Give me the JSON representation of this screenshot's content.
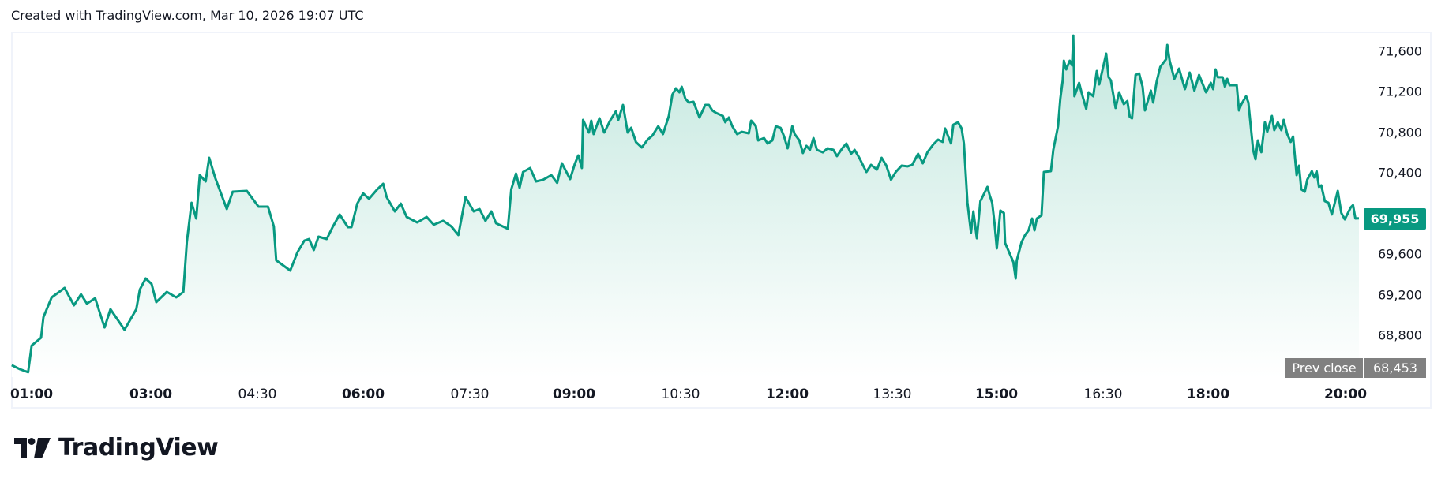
{
  "header": {
    "text": "Created with TradingView.com, Mar 10, 2026 19:07 UTC"
  },
  "logo": {
    "text": "TradingView",
    "icon": "tradingview-logo-icon"
  },
  "colors": {
    "line": "#089981",
    "fill_top": "#c4e8df",
    "fill_bottom": "#ffffff",
    "prev_close": "#808080",
    "frame": "#f0f3fa",
    "text": "#131722"
  },
  "price_badge": {
    "value": "69,955"
  },
  "prev_close": {
    "label": "Prev close",
    "value": "68,453"
  },
  "chart_data": {
    "type": "area",
    "title": "",
    "xlabel": "",
    "ylabel": "",
    "x_unit": "minutes after 01:00 UTC",
    "x_ticks": [
      {
        "label": "01:00",
        "bold": true,
        "pos": 40
      },
      {
        "label": "03:00",
        "bold": true,
        "pos": 191
      },
      {
        "label": "04:30",
        "bold": false,
        "pos": 326
      },
      {
        "label": "06:00",
        "bold": true,
        "pos": 460
      },
      {
        "label": "07:30",
        "bold": false,
        "pos": 595
      },
      {
        "label": "09:00",
        "bold": true,
        "pos": 727
      },
      {
        "label": "10:30",
        "bold": false,
        "pos": 862
      },
      {
        "label": "12:00",
        "bold": true,
        "pos": 997
      },
      {
        "label": "13:30",
        "bold": false,
        "pos": 1130
      },
      {
        "label": "15:00",
        "bold": true,
        "pos": 1262
      },
      {
        "label": "16:30",
        "bold": false,
        "pos": 1397
      },
      {
        "label": "18:00",
        "bold": true,
        "pos": 1530
      },
      {
        "label": "20:00",
        "bold": true,
        "pos": 1704
      }
    ],
    "y_ticks": [
      {
        "label": "71,600",
        "value": 71600
      },
      {
        "label": "71,200",
        "value": 71200
      },
      {
        "label": "70,800",
        "value": 70800
      },
      {
        "label": "70,400",
        "value": 70400
      },
      {
        "label": "69,600",
        "value": 69600
      },
      {
        "label": "69,200",
        "value": 69200
      },
      {
        "label": "68,800",
        "value": 68800
      }
    ],
    "ylim": [
      68300,
      71800
    ],
    "current_price": 69955,
    "prev_close": 68453,
    "grid": false,
    "legend": "none",
    "x": [
      1,
      8,
      15,
      18,
      26,
      28,
      35,
      46,
      54,
      60,
      65,
      72,
      80,
      85,
      97,
      107,
      110,
      115,
      120,
      124,
      133,
      141,
      147,
      150,
      154,
      158,
      161,
      166,
      169,
      174,
      184,
      189,
      201,
      211,
      219,
      224,
      226,
      238,
      244,
      250,
      254,
      258,
      262,
      269,
      274,
      280,
      287,
      290,
      295,
      300,
      305,
      312,
      317,
      320,
      327,
      332,
      337,
      346,
      354,
      360,
      368,
      375,
      381,
      387,
      394,
      399,
      404,
      409,
      413,
      423,
      426,
      430,
      433,
      436,
      442,
      447,
      453,
      460,
      465,
      469,
      476,
      480,
      483,
      486,
      487,
      492,
      494,
      496,
      501,
      505,
      510,
      515,
      517,
      521,
      525,
      528,
      532,
      537,
      542,
      546,
      551,
      555,
      560,
      563,
      566,
      569,
      571,
      574,
      577,
      581,
      586,
      591,
      594,
      597,
      600,
      606,
      608,
      611,
      614,
      618,
      622,
      628,
      630,
      634,
      636,
      641,
      644,
      648,
      651,
      655,
      658,
      661,
      665,
      667,
      671,
      674,
      677,
      680,
      683,
      686,
      691,
      695,
      700,
      703,
      708,
      711,
      715,
      718,
      722,
      728,
      732,
      737,
      741,
      745,
      749,
      753,
      758,
      763,
      767,
      772,
      776,
      780,
      785,
      789,
      793,
      795,
      800,
      802,
      806,
      809,
      811,
      814,
      817,
      819,
      822,
      825,
      831,
      833,
      835,
      837,
      839,
      842,
      845,
      846,
      853,
      855,
      856,
      860,
      863,
      866,
      869,
      871,
      873,
      877,
      879,
      885,
      887,
      891,
      893,
      895,
      896,
      898,
      901,
      903,
      904,
      905,
      909,
      911,
      915,
      917,
      921,
      924,
      926,
      932,
      934,
      936,
      940,
      943,
      947,
      950,
      952,
      954,
      957,
      960,
      963,
      965,
      970,
      972,
      975,
      978,
      983,
      984,
      986,
      990,
      994,
      999,
      1003,
      1007,
      1011,
      1017,
      1021,
      1023,
      1025,
      1027,
      1031,
      1033,
      1035,
      1037,
      1043,
      1045,
      1047,
      1051,
      1053,
      1057,
      1059,
      1061,
      1064,
      1067,
      1069,
      1073,
      1075,
      1078,
      1081,
      1083,
      1086,
      1089,
      1091,
      1094,
      1096,
      1098,
      1101,
      1103,
      1107,
      1109,
      1111,
      1113,
      1115,
      1118,
      1121,
      1124,
      1129,
      1132,
      1135,
      1140,
      1142,
      1144,
      1147
    ],
    "values": [
      68508,
      68469,
      68438,
      68702,
      68779,
      68981,
      69176,
      69269,
      69098,
      69207,
      69114,
      69168,
      68880,
      69059,
      68857,
      69059,
      69253,
      69362,
      69308,
      69129,
      69230,
      69176,
      69230,
      69720,
      70108,
      69953,
      70380,
      70318,
      70551,
      70357,
      70046,
      70217,
      70225,
      70069,
      70069,
      69875,
      69541,
      69440,
      69619,
      69735,
      69751,
      69642,
      69774,
      69751,
      69867,
      69992,
      69867,
      69867,
      70100,
      70201,
      70147,
      70240,
      70295,
      70163,
      70023,
      70100,
      69968,
      69914,
      69968,
      69891,
      69930,
      69875,
      69790,
      70163,
      70023,
      70046,
      69930,
      70023,
      69906,
      69852,
      70240,
      70396,
      70256,
      70411,
      70450,
      70318,
      70334,
      70380,
      70303,
      70497,
      70341,
      70489,
      70574,
      70450,
      70924,
      70800,
      70916,
      70784,
      70940,
      70800,
      70916,
      71009,
      70924,
      71072,
      70800,
      70846,
      70706,
      70652,
      70730,
      70769,
      70862,
      70784,
      70963,
      71173,
      71235,
      71196,
      71250,
      71134,
      71095,
      71103,
      70947,
      71072,
      71072,
      71017,
      70994,
      70963,
      70901,
      70947,
      70862,
      70784,
      70807,
      70792,
      70916,
      70862,
      70722,
      70745,
      70691,
      70722,
      70862,
      70846,
      70761,
      70644,
      70862,
      70784,
      70722,
      70598,
      70668,
      70629,
      70745,
      70629,
      70605,
      70644,
      70629,
      70567,
      70652,
      70691,
      70590,
      70629,
      70551,
      70411,
      70481,
      70435,
      70551,
      70473,
      70334,
      70411,
      70473,
      70466,
      70481,
      70590,
      70497,
      70606,
      70683,
      70730,
      70707,
      70839,
      70691,
      70877,
      70901,
      70839,
      70691,
      70108,
      69813,
      70023,
      69758,
      70124,
      70264,
      70178,
      70108,
      69906,
      69658,
      70031,
      70007,
      69712,
      69525,
      69362,
      69541,
      69720,
      69790,
      69836,
      69953,
      69836,
      69953,
      69984,
      70411,
      70419,
      70629,
      70862,
      71134,
      71313,
      71507,
      71421,
      71507,
      71460,
      71755,
      71157,
      71289,
      71196,
      71033,
      71196,
      71157,
      71406,
      71274,
      71577,
      71344,
      71313,
      71041,
      71196,
      71079,
      71110,
      70955,
      70939,
      71367,
      71382,
      71250,
      71017,
      71212,
      71095,
      71305,
      71445,
      71522,
      71662,
      71507,
      71328,
      71429,
      71227,
      71390,
      71212,
      71367,
      71196,
      71289,
      71227,
      71421,
      71344,
      71344,
      71250,
      71328,
      71266,
      71266,
      71017,
      71079,
      71157,
      71095,
      70629,
      70536,
      70722,
      70606,
      70901,
      70807,
      70963,
      70823,
      70901,
      70823,
      70924,
      70784,
      70707,
      70761,
      70380,
      70473,
      70240,
      70217,
      70334,
      70419,
      70357,
      70419,
      70264,
      70279,
      70124,
      70108,
      69992,
      70225,
      70007,
      69945,
      70062,
      70085,
      69953,
      69955
    ]
  }
}
